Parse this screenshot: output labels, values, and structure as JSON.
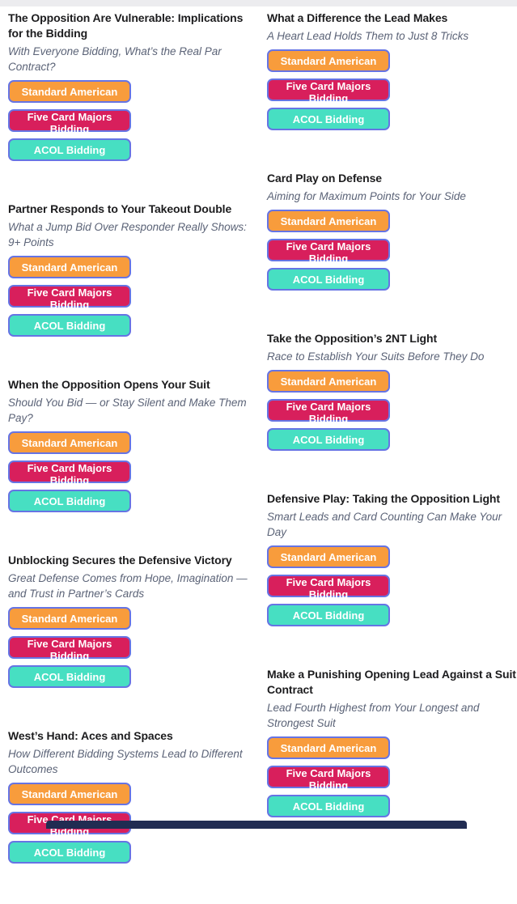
{
  "page": {
    "background_color": "#ffffff",
    "top_strip_color": "#ececef",
    "footer_bar_color": "#212c52",
    "title_color": "#1c1c1e",
    "subtitle_color": "#5b6377",
    "button_border_color": "#6674e4"
  },
  "buttons": [
    {
      "name": "standard-american-button",
      "label": "Standard American",
      "color": "#f89c3c"
    },
    {
      "name": "five-card-majors-bidding-button",
      "label": "Five Card Majors Bidding",
      "color": "#d81f5c"
    },
    {
      "name": "acol-bidding-button",
      "label": "ACOL Bidding",
      "color": "#47dfc2"
    }
  ],
  "columns": {
    "left": [
      {
        "title": "The Opposition Are Vulnerable: Implications for the Bidding",
        "subtitle": "With Everyone Bidding, What’s the Real Par Contract?"
      },
      {
        "title": "Partner Responds to Your Takeout Double",
        "subtitle": "What a Jump Bid Over Responder Really Shows: 9+ Points"
      },
      {
        "title": "When the Opposition Opens Your Suit",
        "subtitle": "Should You Bid — or Stay Silent and Make Them Pay?"
      },
      {
        "title": "Unblocking Secures the Defensive Victory",
        "subtitle": "Great Defense Comes from Hope, Imagination — and Trust in Partner’s Cards"
      },
      {
        "title": "West’s Hand: Aces and Spaces",
        "subtitle": "How Different Bidding Systems Lead to Different Outcomes"
      }
    ],
    "right": [
      {
        "title": "What a Difference the Lead Makes",
        "subtitle": "A Heart Lead Holds Them to Just 8 Tricks"
      },
      {
        "title": "Card Play on Defense",
        "subtitle": "Aiming for Maximum Points for Your Side"
      },
      {
        "title": "Take the Opposition’s 2NT Light",
        "subtitle": "Race to Establish Your Suits Before They Do"
      },
      {
        "title": "Defensive Play: Taking the Opposition Light",
        "subtitle": "Smart Leads and Card Counting Can Make Your Day"
      },
      {
        "title": "Make a Punishing Opening Lead Against a Suit Contract",
        "subtitle": "Lead Fourth Highest from Your Longest and Strongest Suit"
      }
    ]
  }
}
